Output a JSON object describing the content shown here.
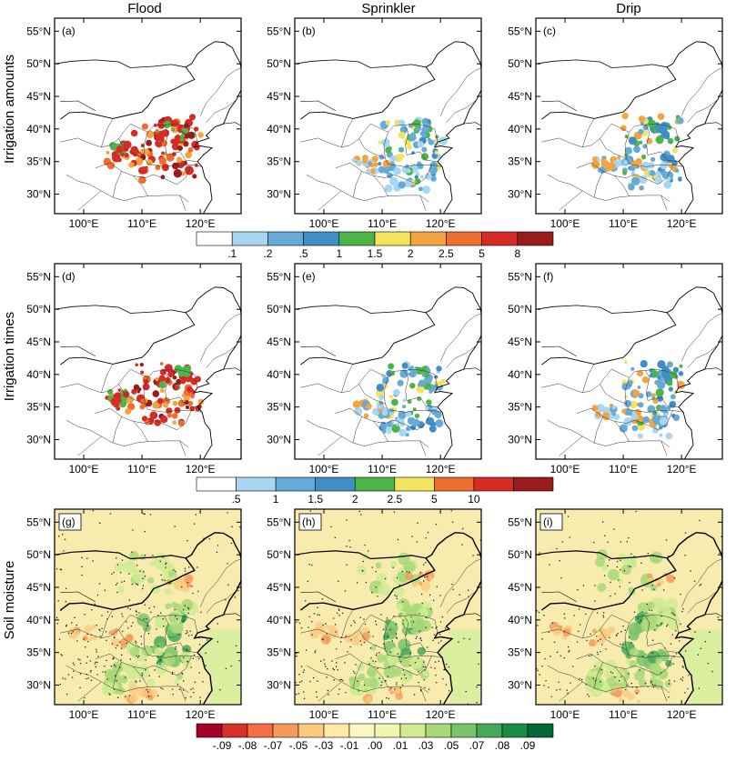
{
  "columns": [
    "Flood",
    "Sprinkler",
    "Drip"
  ],
  "rows": [
    "Irrigation amounts",
    "Irrigation times",
    "Soil moisture"
  ],
  "panel_labels": [
    "(a)",
    "(b)",
    "(c)",
    "(d)",
    "(e)",
    "(f)",
    "(g)",
    "(h)",
    "(i)"
  ],
  "lat_ticks": [
    "55°N",
    "50°N",
    "45°N",
    "40°N",
    "35°N",
    "30°N"
  ],
  "lon_ticks": [
    "100°E",
    "110°E",
    "120°E"
  ],
  "colorbars": [
    {
      "row": 0,
      "labels": [
        ".1",
        ".2",
        ".5",
        "1",
        "1.5",
        "2",
        "2.5",
        "5",
        "8"
      ],
      "colors": [
        "#ffffff",
        "#a6d6f2",
        "#66aad8",
        "#3f8ec5",
        "#4db547",
        "#f3e35d",
        "#f3a441",
        "#ee6e2e",
        "#d72c26",
        "#9a1b1b"
      ]
    },
    {
      "row": 1,
      "labels": [
        ".5",
        "1",
        "1.5",
        "2",
        "2.5",
        "5",
        "10"
      ],
      "colors": [
        "#ffffff",
        "#a6d6f2",
        "#66aad8",
        "#3f8ec5",
        "#4db547",
        "#f3e35d",
        "#ee6e2e",
        "#d72c26",
        "#9a1b1b"
      ]
    },
    {
      "row": 2,
      "labels": [
        "-.09",
        "-.08",
        "-.07",
        "-.05",
        "-.03",
        "-.01",
        ".00",
        ".01",
        ".03",
        ".05",
        ".07",
        ".08",
        ".09"
      ],
      "colors": [
        "#a50026",
        "#d73027",
        "#f46d43",
        "#f59a5a",
        "#fdc97e",
        "#fee9a6",
        "#fbf7c2",
        "#f0f5b0",
        "#d0eb92",
        "#a9d879",
        "#79c368",
        "#46a85a",
        "#1a8d45",
        "#006837"
      ]
    }
  ],
  "chart_data": {
    "type": "heatmap",
    "description_axes": {
      "x": "longitude",
      "y": "latitude"
    },
    "xlim": [
      95,
      127
    ],
    "ylim": [
      27,
      57
    ],
    "x_ticks": [
      100,
      110,
      120
    ],
    "y_ticks": [
      30,
      35,
      40,
      45,
      50,
      55
    ],
    "hotspots": {
      "irrigation_amounts": [
        {
          "panel": "(a)",
          "lon": 114,
          "lat": 36.5,
          "max_class": "8"
        },
        {
          "panel": "(b)",
          "lon": 115,
          "lat": 37,
          "max_class": "1.5"
        },
        {
          "panel": "(c)",
          "lon": 115,
          "lat": 37,
          "max_class": "2.5"
        }
      ],
      "irrigation_times": [
        {
          "panel": "(d)",
          "lon": 114,
          "lat": 36.5,
          "max_class": "10"
        },
        {
          "panel": "(e)",
          "lon": 115,
          "lat": 37,
          "max_class": "1"
        },
        {
          "panel": "(f)",
          "lon": 115,
          "lat": 37,
          "max_class": "2.5"
        }
      ],
      "soil_moisture": [
        {
          "panel": "(g)",
          "lon": 114,
          "lat": 37,
          "max_class": ".09"
        },
        {
          "panel": "(h)",
          "lon": 114,
          "lat": 37,
          "max_class": ".08"
        },
        {
          "panel": "(i)",
          "lon": 114,
          "lat": 37,
          "max_class": ".05"
        }
      ]
    }
  }
}
